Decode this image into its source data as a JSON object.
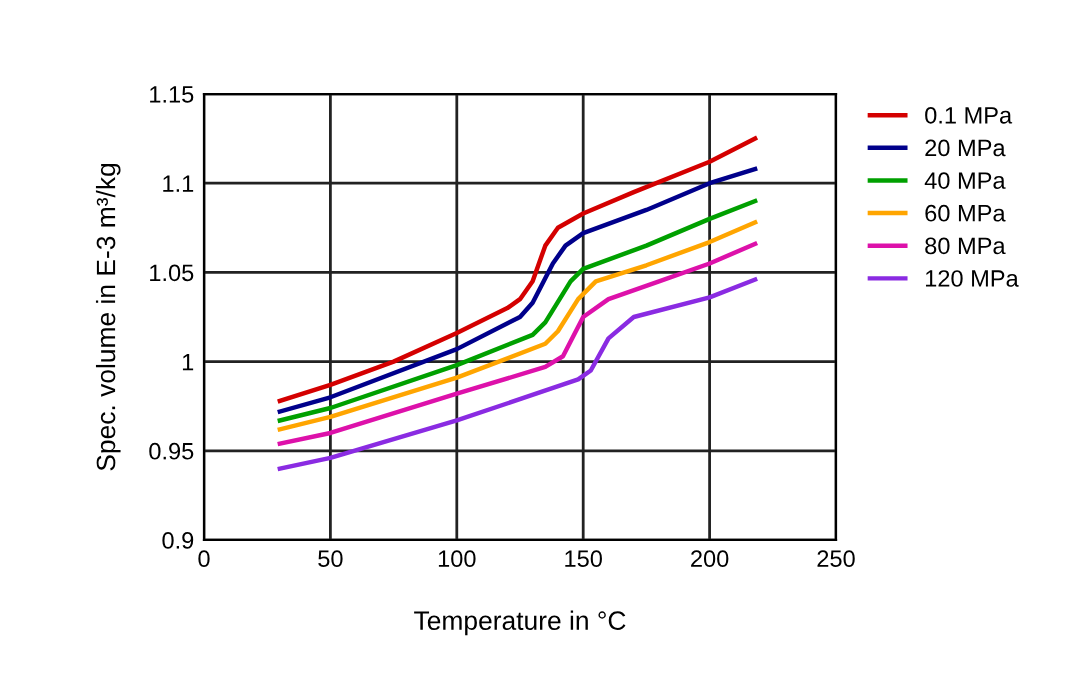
{
  "chart_data": {
    "type": "line",
    "xlabel": "Temperature in °C",
    "ylabel": "Spec. volume in E-3 m³/kg",
    "xlim": [
      0,
      250
    ],
    "xticks": [
      0,
      50,
      100,
      150,
      200,
      250
    ],
    "ylim": [
      0.9,
      1.15
    ],
    "yticks": [
      0.9,
      0.95,
      1,
      1.05,
      1.1,
      1.15
    ],
    "grid": true,
    "legend": "right",
    "marker": "none",
    "line_style": "solid",
    "series": [
      {
        "name": "0.1 MPa",
        "color": "#d40000",
        "x": [
          30,
          50,
          75,
          100,
          120,
          125,
          130,
          135,
          140,
          150,
          170,
          200,
          218
        ],
        "values": [
          0.978,
          0.987,
          1.0,
          1.016,
          1.03,
          1.035,
          1.045,
          1.065,
          1.075,
          1.083,
          1.095,
          1.112,
          1.125
        ]
      },
      {
        "name": "20 MPa",
        "color": "#00008b",
        "x": [
          30,
          50,
          100,
          125,
          130,
          138,
          143,
          150,
          175,
          200,
          218
        ],
        "values": [
          0.972,
          0.98,
          1.007,
          1.025,
          1.033,
          1.055,
          1.065,
          1.072,
          1.085,
          1.1,
          1.108
        ]
      },
      {
        "name": "40 MPa",
        "color": "#00a000",
        "x": [
          30,
          50,
          100,
          130,
          135,
          145,
          150,
          175,
          200,
          218
        ],
        "values": [
          0.967,
          0.974,
          0.998,
          1.015,
          1.022,
          1.045,
          1.052,
          1.065,
          1.08,
          1.09
        ]
      },
      {
        "name": "60 MPa",
        "color": "#ffa500",
        "x": [
          30,
          50,
          100,
          135,
          140,
          148,
          155,
          175,
          200,
          218
        ],
        "values": [
          0.962,
          0.969,
          0.991,
          1.01,
          1.017,
          1.035,
          1.045,
          1.054,
          1.067,
          1.078
        ]
      },
      {
        "name": "80 MPa",
        "color": "#dd11aa",
        "x": [
          30,
          50,
          100,
          135,
          142,
          150,
          160,
          180,
          200,
          218
        ],
        "values": [
          0.954,
          0.96,
          0.982,
          0.997,
          1.003,
          1.025,
          1.035,
          1.045,
          1.055,
          1.066
        ]
      },
      {
        "name": "120 MPa",
        "color": "#8a2be2",
        "x": [
          30,
          50,
          100,
          148,
          153,
          160,
          170,
          200,
          218
        ],
        "values": [
          0.94,
          0.946,
          0.967,
          0.99,
          0.995,
          1.013,
          1.025,
          1.036,
          1.046
        ]
      }
    ]
  }
}
